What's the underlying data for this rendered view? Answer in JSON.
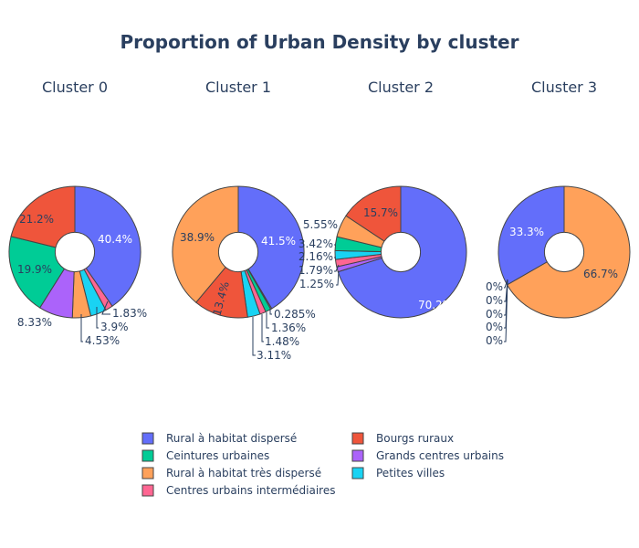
{
  "chart_data": {
    "type": "pie",
    "title": "Proportion of Urban Density by cluster",
    "hole": 0.3,
    "categories": [
      "Rural à habitat dispersé",
      "Bourgs ruraux",
      "Ceintures urbaines",
      "Grands centres urbains",
      "Rural à habitat très dispersé",
      "Petites villes",
      "Centres urbains intermédiaires"
    ],
    "colors": {
      "Rural à habitat dispersé": "#636efa",
      "Bourgs ruraux": "#ef553b",
      "Ceintures urbaines": "#00cc96",
      "Grands centres urbains": "#ab63fa",
      "Rural à habitat très dispersé": "#ffa15a",
      "Petites villes": "#19d3f3",
      "Centres urbains intermédiaires": "#ff6692"
    },
    "legend": {
      "position": "bottom-center",
      "columns": [
        [
          "Rural à habitat dispersé",
          "Ceintures urbaines",
          "Rural à habitat très dispersé",
          "Centres urbains intermédiaires"
        ],
        [
          "Bourgs ruraux",
          "Grands centres urbains",
          "Petites villes"
        ]
      ]
    },
    "pies": [
      {
        "name": "Cluster 0",
        "slices": [
          {
            "label": "Rural à habitat dispersé",
            "value": 40.4,
            "text": "40.4%"
          },
          {
            "label": "Centres urbains intermédiaires",
            "value": 1.83,
            "text": "1.83%"
          },
          {
            "label": "Petites villes",
            "value": 3.9,
            "text": "3.9%"
          },
          {
            "label": "Rural à habitat très dispersé",
            "value": 4.53,
            "text": "4.53%"
          },
          {
            "label": "Grands centres urbains",
            "value": 8.33,
            "text": "8.33%"
          },
          {
            "label": "Ceintures urbaines",
            "value": 19.9,
            "text": "19.9%"
          },
          {
            "label": "Bourgs ruraux",
            "value": 21.2,
            "text": "21.2%"
          }
        ]
      },
      {
        "name": "Cluster 1",
        "slices": [
          {
            "label": "Rural à habitat dispersé",
            "value": 41.5,
            "text": "41.5%"
          },
          {
            "label": "Grands centres urbains",
            "value": 0.285,
            "text": "0.285%"
          },
          {
            "label": "Ceintures urbaines",
            "value": 1.36,
            "text": "1.36%"
          },
          {
            "label": "Centres urbains intermédiaires",
            "value": 1.48,
            "text": "1.48%"
          },
          {
            "label": "Petites villes",
            "value": 3.11,
            "text": "3.11%"
          },
          {
            "label": "Bourgs ruraux",
            "value": 13.4,
            "text": "13.4%"
          },
          {
            "label": "Rural à habitat très dispersé",
            "value": 38.9,
            "text": "38.9%"
          }
        ]
      },
      {
        "name": "Cluster 2",
        "slices": [
          {
            "label": "Rural à habitat dispersé",
            "value": 70.2,
            "text": "70.2%"
          },
          {
            "label": "Grands centres urbains",
            "value": 1.25,
            "text": "1.25%"
          },
          {
            "label": "Centres urbains intermédiaires",
            "value": 1.79,
            "text": "1.79%"
          },
          {
            "label": "Petites villes",
            "value": 2.16,
            "text": "2.16%"
          },
          {
            "label": "Ceintures urbaines",
            "value": 3.42,
            "text": "3.42%"
          },
          {
            "label": "Rural à habitat très dispersé",
            "value": 5.55,
            "text": "5.55%"
          },
          {
            "label": "Bourgs ruraux",
            "value": 15.7,
            "text": "15.7%"
          }
        ]
      },
      {
        "name": "Cluster 3",
        "slices": [
          {
            "label": "Rural à habitat très dispersé",
            "value": 66.7,
            "text": "66.7%"
          },
          {
            "label": "Bourgs ruraux",
            "value": 0,
            "text": "0%"
          },
          {
            "label": "Ceintures urbaines",
            "value": 0,
            "text": "0%"
          },
          {
            "label": "Grands centres urbains",
            "value": 0,
            "text": "0%"
          },
          {
            "label": "Petites villes",
            "value": 0,
            "text": "0%"
          },
          {
            "label": "Centres urbains intermédiaires",
            "value": 0,
            "text": "0%"
          },
          {
            "label": "Rural à habitat dispersé",
            "value": 33.3,
            "text": "33.3%"
          }
        ]
      }
    ]
  }
}
